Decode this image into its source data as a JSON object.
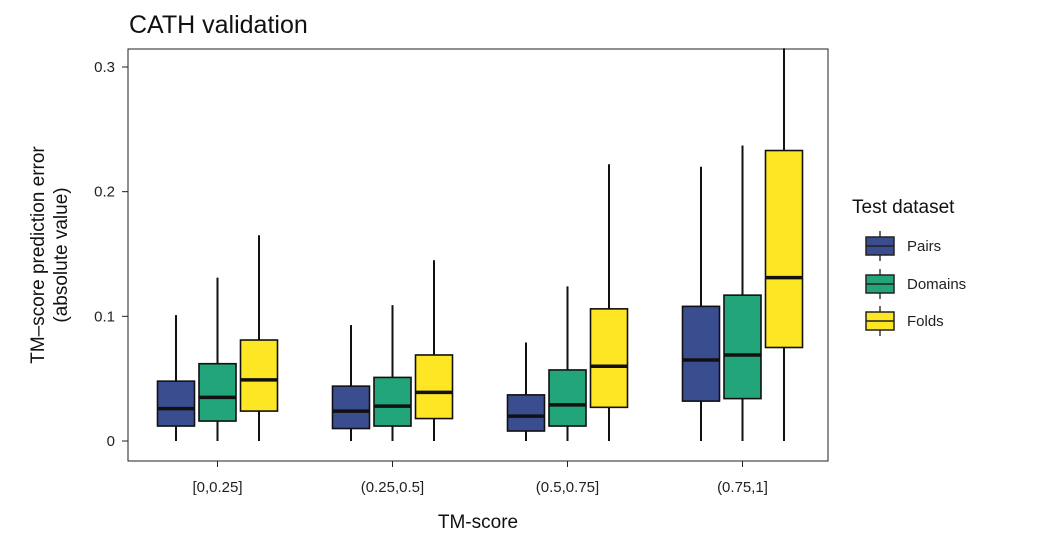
{
  "chart_data": {
    "type": "box",
    "title": "CATH validation",
    "xlabel": "TM-score",
    "ylabel": [
      "TM–score prediction error",
      "(absolute value)"
    ],
    "ylim": [
      -0.015,
      0.315
    ],
    "yticks": [
      0,
      0.1,
      0.2,
      0.3
    ],
    "ytick_labels": [
      "0",
      "0.1",
      "0.2",
      "0.3"
    ],
    "categories": [
      "[0,0.25]",
      "(0.25,0.5]",
      "(0.5,0.75]",
      "(0.75,1]"
    ],
    "legend": {
      "title": "Test dataset",
      "position": "right"
    },
    "series": [
      {
        "name": "Pairs",
        "color": "#3A4D8F",
        "boxes": [
          {
            "whisker_low": 0,
            "q1": 0.012,
            "median": 0.026,
            "q3": 0.048,
            "whisker_high": 0.101
          },
          {
            "whisker_low": 0,
            "q1": 0.01,
            "median": 0.024,
            "q3": 0.044,
            "whisker_high": 0.093
          },
          {
            "whisker_low": 0,
            "q1": 0.008,
            "median": 0.02,
            "q3": 0.037,
            "whisker_high": 0.079
          },
          {
            "whisker_low": 0,
            "q1": 0.032,
            "median": 0.065,
            "q3": 0.108,
            "whisker_high": 0.22
          }
        ]
      },
      {
        "name": "Domains",
        "color": "#22A57B",
        "boxes": [
          {
            "whisker_low": 0,
            "q1": 0.016,
            "median": 0.035,
            "q3": 0.062,
            "whisker_high": 0.131
          },
          {
            "whisker_low": 0,
            "q1": 0.012,
            "median": 0.028,
            "q3": 0.051,
            "whisker_high": 0.109
          },
          {
            "whisker_low": 0,
            "q1": 0.012,
            "median": 0.029,
            "q3": 0.057,
            "whisker_high": 0.124
          },
          {
            "whisker_low": 0,
            "q1": 0.034,
            "median": 0.069,
            "q3": 0.117,
            "whisker_high": 0.237
          }
        ]
      },
      {
        "name": "Folds",
        "color": "#FDE725",
        "boxes": [
          {
            "whisker_low": 0,
            "q1": 0.024,
            "median": 0.049,
            "q3": 0.081,
            "whisker_high": 0.165
          },
          {
            "whisker_low": 0,
            "q1": 0.018,
            "median": 0.039,
            "q3": 0.069,
            "whisker_high": 0.145
          },
          {
            "whisker_low": 0,
            "q1": 0.027,
            "median": 0.06,
            "q3": 0.106,
            "whisker_high": 0.222
          },
          {
            "whisker_low": 0,
            "q1": 0.075,
            "median": 0.131,
            "q3": 0.233,
            "whisker_high": 0.315
          }
        ]
      }
    ]
  }
}
